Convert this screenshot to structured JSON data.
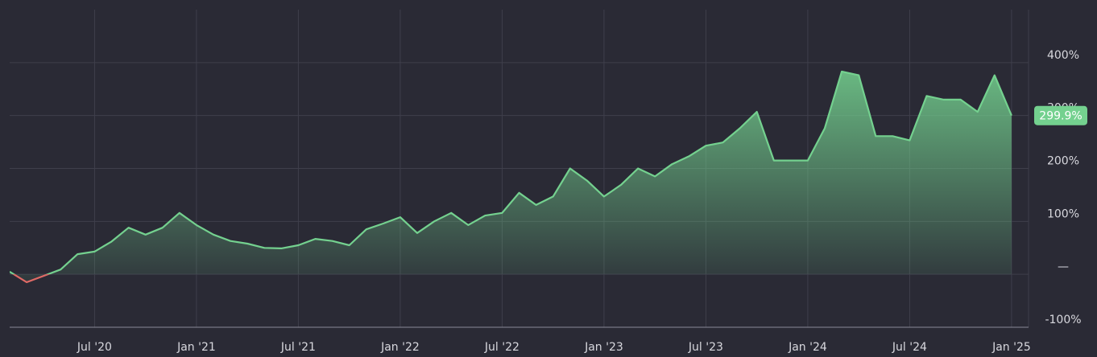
{
  "chart_data": {
    "type": "line",
    "x": [
      "2020-02",
      "2020-03",
      "2020-04",
      "2020-05",
      "2020-06",
      "2020-07",
      "2020-08",
      "2020-09",
      "2020-10",
      "2020-11",
      "2020-12",
      "2021-01",
      "2021-02",
      "2021-03",
      "2021-04",
      "2021-05",
      "2021-06",
      "2021-07",
      "2021-08",
      "2021-09",
      "2021-10",
      "2021-11",
      "2021-12",
      "2022-01",
      "2022-02",
      "2022-03",
      "2022-04",
      "2022-05",
      "2022-06",
      "2022-07",
      "2022-08",
      "2022-09",
      "2022-10",
      "2022-11",
      "2022-12",
      "2023-01",
      "2023-02",
      "2023-03",
      "2023-04",
      "2023-05",
      "2023-06",
      "2023-07",
      "2023-08",
      "2023-09",
      "2023-10",
      "2023-11",
      "2023-12",
      "2024-01",
      "2024-02",
      "2024-03",
      "2024-04",
      "2024-05",
      "2024-06",
      "2024-07",
      "2024-08",
      "2024-09",
      "2024-10",
      "2024-11",
      "2024-12",
      "2025-01"
    ],
    "values": [
      5,
      -15,
      -3,
      9,
      38,
      43,
      62,
      88,
      75,
      88,
      116,
      93,
      75,
      63,
      58,
      50,
      49,
      55,
      67,
      63,
      55,
      85,
      96,
      108,
      78,
      100,
      116,
      93,
      111,
      116,
      154,
      131,
      147,
      200,
      177,
      147,
      169,
      200,
      185,
      208,
      223,
      243,
      249,
      276,
      307,
      215,
      215,
      215,
      276,
      383,
      376,
      261,
      261,
      253,
      337,
      330,
      330,
      307,
      376,
      299.9
    ],
    "end_label": "299.9%",
    "color": "#74d18f",
    "negative_color": "#e06a66",
    "xlim": [
      "2020-02",
      "2025-02"
    ],
    "xticks": [
      {
        "value": "2020-07",
        "label": "Jul '20"
      },
      {
        "value": "2021-01",
        "label": "Jan '21"
      },
      {
        "value": "2021-07",
        "label": "Jul '21"
      },
      {
        "value": "2022-01",
        "label": "Jan '22"
      },
      {
        "value": "2022-07",
        "label": "Jul '22"
      },
      {
        "value": "2023-01",
        "label": "Jan '23"
      },
      {
        "value": "2023-07",
        "label": "Jul '23"
      },
      {
        "value": "2024-01",
        "label": "Jan '24"
      },
      {
        "value": "2024-07",
        "label": "Jul '24"
      },
      {
        "value": "2025-01",
        "label": "Jan '25"
      }
    ],
    "ylim": [
      -100,
      500
    ],
    "yticks": [
      {
        "value": -100,
        "label": "-100%"
      },
      {
        "value": 0,
        "label": "—"
      },
      {
        "value": 100,
        "label": "100%"
      },
      {
        "value": 200,
        "label": "200%"
      },
      {
        "value": 300,
        "label": "300%"
      },
      {
        "value": 400,
        "label": "400%"
      }
    ],
    "grid": true
  }
}
